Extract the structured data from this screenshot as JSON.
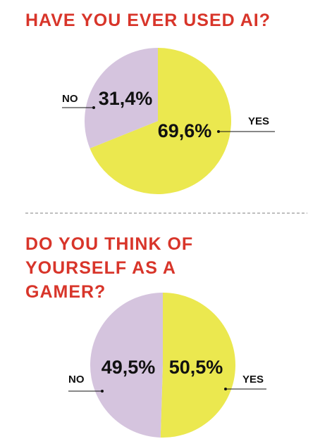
{
  "chart_data": [
    {
      "type": "pie",
      "title": "HAVE YOU EVER USED AI?",
      "categories": [
        "YES",
        "NO"
      ],
      "values": [
        69.6,
        31.4
      ],
      "value_labels": [
        "69,6%",
        "31,4%"
      ],
      "colors": [
        "#ebe84f",
        "#d5c4de"
      ]
    },
    {
      "type": "pie",
      "title": "DO YOU THINK OF YOURSELF AS A GAMER?",
      "categories": [
        "YES",
        "NO"
      ],
      "values": [
        50.5,
        49.5
      ],
      "value_labels": [
        "50,5%",
        "49,5%"
      ],
      "colors": [
        "#ebe84f",
        "#d5c4de"
      ]
    }
  ]
}
